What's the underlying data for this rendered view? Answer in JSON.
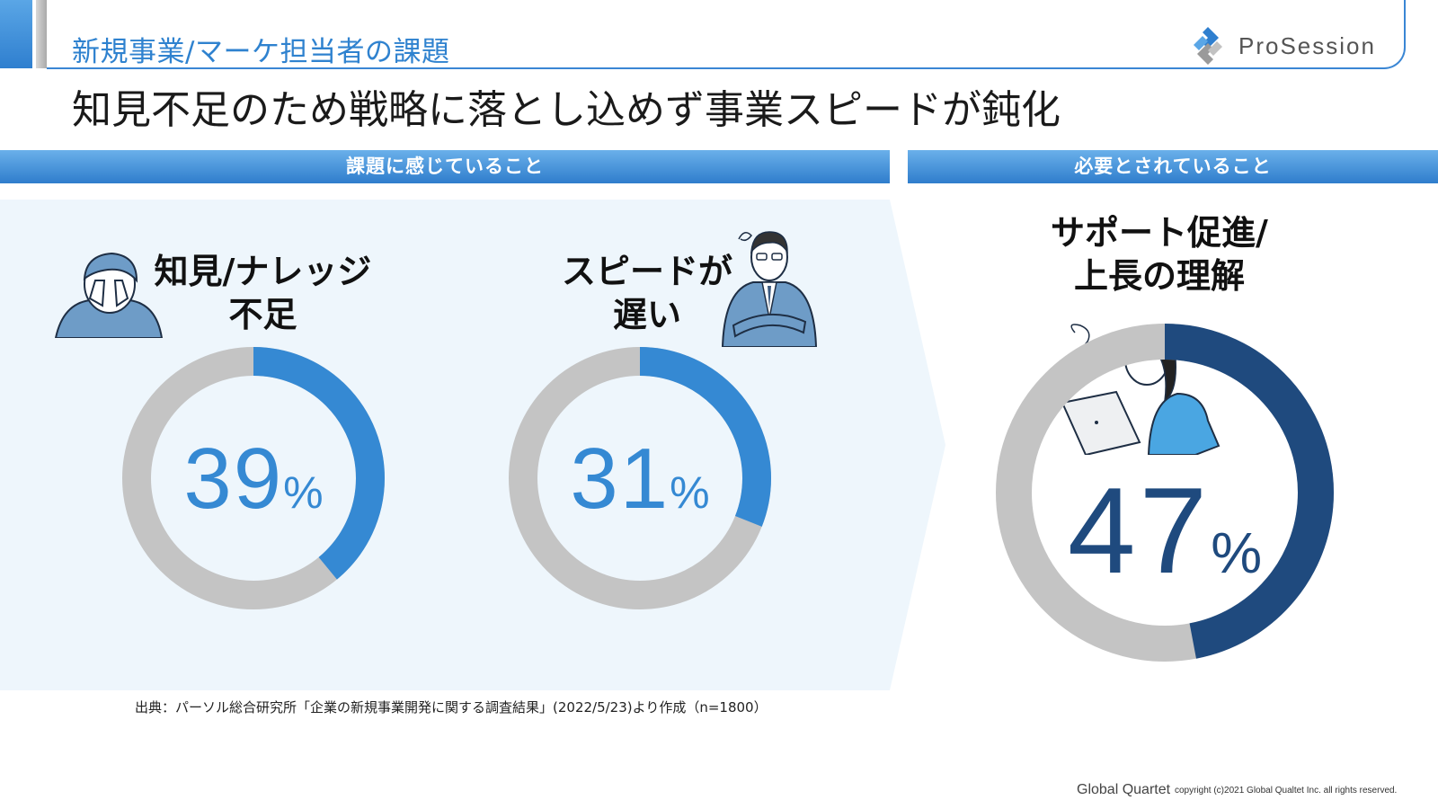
{
  "header": {
    "category": "新規事業/マーケ担当者の課題",
    "logo_text": "ProSession",
    "headline": "知見不足のため戦略に落とし込めず事業スピードが鈍化"
  },
  "sections": {
    "left_title": "課題に感じていること",
    "right_title": "必要とされていること"
  },
  "items": [
    {
      "label_line1": "知見/ナレッジ",
      "label_line2": "不足",
      "value": "39",
      "unit": "%"
    },
    {
      "label_line1": "スピードが",
      "label_line2": "遅い",
      "value": "31",
      "unit": "%"
    },
    {
      "label_line1": "サポート促進/",
      "label_line2": "上長の理解",
      "value": "47",
      "unit": "%"
    }
  ],
  "chart_data": [
    {
      "type": "pie",
      "categories": [
        "知見/ナレッジ不足",
        ""
      ],
      "values": [
        39,
        61
      ],
      "colors": [
        "#3589d3",
        "#c4c4c4"
      ]
    },
    {
      "type": "pie",
      "categories": [
        "スピードが遅い",
        ""
      ],
      "values": [
        31,
        69
      ],
      "colors": [
        "#3589d3",
        "#c4c4c4"
      ]
    },
    {
      "type": "pie",
      "categories": [
        "サポート促進/上長の理解",
        ""
      ],
      "values": [
        47,
        53
      ],
      "colors": [
        "#1f4a7e",
        "#c4c4c4"
      ]
    }
  ],
  "footer": {
    "source": "出典：パーソル総合研究所「企業の新規事業開発に関する調査結果」(2022/5/23)より作成（n=1800）",
    "brand": "Global Quartet",
    "copyright": "copyright (c)2021 Global Qualtet Inc. all rights reserved."
  },
  "colors": {
    "accent": "#3589d3",
    "dark_accent": "#1f4a7e",
    "track": "#c4c4c4",
    "panel": "#eef6fc"
  }
}
